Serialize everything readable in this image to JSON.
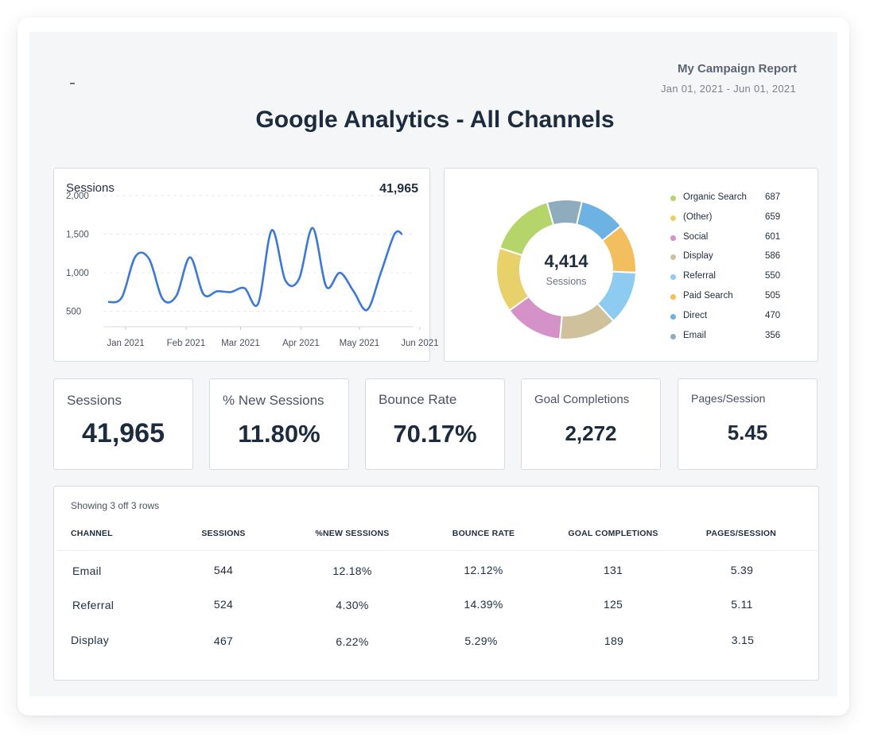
{
  "report": {
    "name": "My Campaign Report",
    "dates": "Jan 01, 2021 - Jun 01, 2021",
    "title": "Google Analytics - All Channels"
  },
  "sessions_panel": {
    "label": "Sessions",
    "value": "41,965",
    "chart_data": {
      "type": "line",
      "ylim": [
        300,
        2000
      ],
      "yticks": [
        "2,000",
        "1,500",
        "1,000",
        "500"
      ],
      "ytick_values": [
        2000,
        1500,
        1000,
        500
      ],
      "xticks": [
        "Jan 2021",
        "Feb 2021",
        "Mar 2021",
        "Apr 2021",
        "May 2021",
        "Jun 2021"
      ],
      "series": [
        {
          "color": "#3b78d8",
          "x": [
            "2021-01-01",
            "2021-01-08",
            "2021-01-15",
            "2021-01-22",
            "2021-01-29",
            "2021-02-05",
            "2021-02-12",
            "2021-02-19",
            "2021-02-26",
            "2021-03-05",
            "2021-03-12",
            "2021-03-19",
            "2021-03-26",
            "2021-04-02",
            "2021-04-09",
            "2021-04-16",
            "2021-04-23",
            "2021-04-30",
            "2021-05-07",
            "2021-05-14",
            "2021-05-21",
            "2021-05-28",
            "2021-06-01"
          ],
          "values": [
            620,
            680,
            1210,
            1180,
            660,
            700,
            1200,
            720,
            760,
            750,
            800,
            600,
            1550,
            900,
            920,
            1580,
            820,
            1000,
            760,
            520,
            1000,
            1500,
            1500
          ]
        }
      ]
    }
  },
  "donut_panel": {
    "center_value": "4,414",
    "center_label": "Sessions",
    "chart_data": {
      "type": "pie",
      "slices": [
        {
          "label": "Organic Search",
          "value": 687,
          "color": "#b5d56a"
        },
        {
          "label": "(Other)",
          "value": 659,
          "color": "#e8d16a"
        },
        {
          "label": "Social",
          "value": 601,
          "color": "#d592c8"
        },
        {
          "label": "Display",
          "value": 586,
          "color": "#cfc19b"
        },
        {
          "label": "Referral",
          "value": 550,
          "color": "#8dcbf0"
        },
        {
          "label": "Paid Search",
          "value": 505,
          "color": "#f3bf5e"
        },
        {
          "label": "Direct",
          "value": 470,
          "color": "#6cb3e3"
        },
        {
          "label": "Email",
          "value": 356,
          "color": "#8fabbe"
        }
      ]
    }
  },
  "kpis": [
    {
      "label": "Sessions",
      "value": "41,965"
    },
    {
      "label": "% New Sessions",
      "value": "11.80%"
    },
    {
      "label": "Bounce Rate",
      "value": "70.17%"
    },
    {
      "label": "Goal Completions",
      "value": "2,272"
    },
    {
      "label": "Pages/Session",
      "value": "5.45"
    }
  ],
  "table": {
    "note": "Showing 3 off 3 rows",
    "headers": [
      "CHANNEL",
      "SESSIONS",
      "%NEW SESSIONS",
      "BOUNCE RATE",
      "GOAL COMPLETIONS",
      "PAGES/SESSION"
    ],
    "rows": [
      [
        "Email",
        "544",
        "12.18%",
        "12.12%",
        "131",
        "5.39"
      ],
      [
        "Referral",
        "524",
        "4.30%",
        "14.39%",
        "125",
        "5.11"
      ],
      [
        "Display",
        "467",
        "6.22%",
        "5.29%",
        "189",
        "3.15"
      ]
    ]
  }
}
